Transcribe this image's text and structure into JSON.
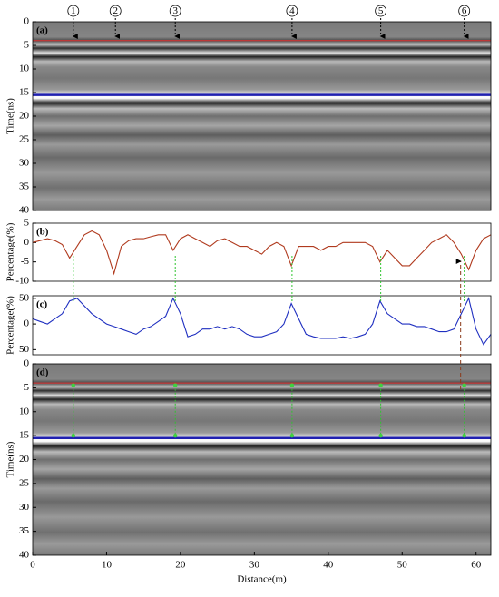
{
  "chart_data": [
    {
      "type": "image",
      "label": "(a)",
      "ylabel": "Time(ns)",
      "xlim": [
        0,
        62
      ],
      "ylim": [
        0,
        40
      ],
      "y_inverted": true,
      "yticks": [
        0,
        5,
        10,
        15,
        20,
        25,
        30,
        35,
        40
      ],
      "layer_times": [
        4,
        15.5
      ],
      "layer_colors": [
        "#e03030",
        "#2020b0"
      ],
      "markers": {
        "labels": [
          "1",
          "2",
          "3",
          "4",
          "5",
          "6"
        ],
        "x": [
          5.5,
          11.2,
          19.3,
          35.1,
          47.1,
          58.4
        ]
      }
    },
    {
      "type": "line",
      "label": "(b)",
      "ylabel": "Percentage(%)",
      "xlim": [
        0,
        62
      ],
      "ylim": [
        -10,
        5
      ],
      "yticks": [
        -10,
        -5,
        0,
        5
      ],
      "series": [
        {
          "color": "#b03a1e",
          "x": [
            0,
            1,
            2,
            3,
            4,
            5,
            6,
            7,
            8,
            9,
            10,
            11,
            12,
            13,
            14,
            15,
            16,
            17,
            18,
            19,
            20,
            21,
            22,
            23,
            24,
            25,
            26,
            27,
            28,
            29,
            30,
            31,
            32,
            33,
            34,
            35,
            36,
            37,
            38,
            39,
            40,
            41,
            42,
            43,
            44,
            45,
            46,
            47,
            48,
            49,
            50,
            51,
            52,
            53,
            54,
            55,
            56,
            57,
            58,
            59,
            60,
            61,
            62
          ],
          "values": [
            0,
            0.5,
            1,
            0.5,
            -0.5,
            -4,
            -1,
            2,
            3,
            2,
            -2,
            -8,
            -1,
            0.5,
            1,
            1,
            1.5,
            2,
            2,
            -2,
            1,
            2,
            1,
            0,
            -1,
            0.5,
            1,
            0,
            -1,
            -1,
            -2,
            -3,
            -1,
            0,
            -1,
            -6,
            -1,
            -1,
            -1,
            -2,
            -1,
            -1,
            0,
            0,
            0,
            0,
            -1,
            -5,
            -2,
            -4,
            -6,
            -6,
            -4,
            -2,
            0,
            1,
            2,
            0,
            -3,
            -7,
            -2,
            1,
            2
          ]
        }
      ]
    },
    {
      "type": "line",
      "label": "(c)",
      "ylabel": "Percentage(%)",
      "xlim": [
        0,
        62
      ],
      "ylim": [
        -60,
        55
      ],
      "yticks": [
        {
          "value": -50,
          "label": "50"
        },
        0,
        50
      ],
      "series": [
        {
          "color": "#1f2fc0",
          "x": [
            0,
            1,
            2,
            3,
            4,
            5,
            6,
            7,
            8,
            9,
            10,
            11,
            12,
            13,
            14,
            15,
            16,
            17,
            18,
            19,
            20,
            21,
            22,
            23,
            24,
            25,
            26,
            27,
            28,
            29,
            30,
            31,
            32,
            33,
            34,
            35,
            36,
            37,
            38,
            39,
            40,
            41,
            42,
            43,
            44,
            45,
            46,
            47,
            48,
            49,
            50,
            51,
            52,
            53,
            54,
            55,
            56,
            57,
            58,
            59,
            60,
            61,
            62
          ],
          "values": [
            10,
            5,
            0,
            10,
            20,
            45,
            50,
            35,
            20,
            10,
            0,
            -5,
            -10,
            -15,
            -20,
            -10,
            -5,
            5,
            15,
            50,
            20,
            -25,
            -20,
            -10,
            -10,
            -5,
            -10,
            -5,
            -10,
            -20,
            -25,
            -25,
            -20,
            -15,
            0,
            40,
            10,
            -20,
            -25,
            -28,
            -28,
            -28,
            -25,
            -28,
            -25,
            -20,
            0,
            45,
            20,
            10,
            0,
            0,
            -5,
            -5,
            -10,
            -15,
            -15,
            -10,
            20,
            50,
            -10,
            -40,
            -20
          ]
        }
      ]
    },
    {
      "type": "image",
      "label": "(d)",
      "ylabel": "Time(ns)",
      "xlabel": "Distance(m)",
      "xlim": [
        0,
        62
      ],
      "ylim": [
        0,
        40
      ],
      "y_inverted": true,
      "yticks": [
        0,
        5,
        10,
        15,
        20,
        25,
        30,
        35,
        40
      ],
      "xticks": [
        0,
        10,
        20,
        30,
        40,
        50,
        60
      ],
      "layer_times": [
        4,
        15.5
      ],
      "layer_colors": [
        "#e03030",
        "#2020b0"
      ],
      "points_x": [
        5.5,
        19.3,
        35.1,
        47.1,
        58.4
      ],
      "point_times": [
        4.5,
        15
      ]
    }
  ]
}
